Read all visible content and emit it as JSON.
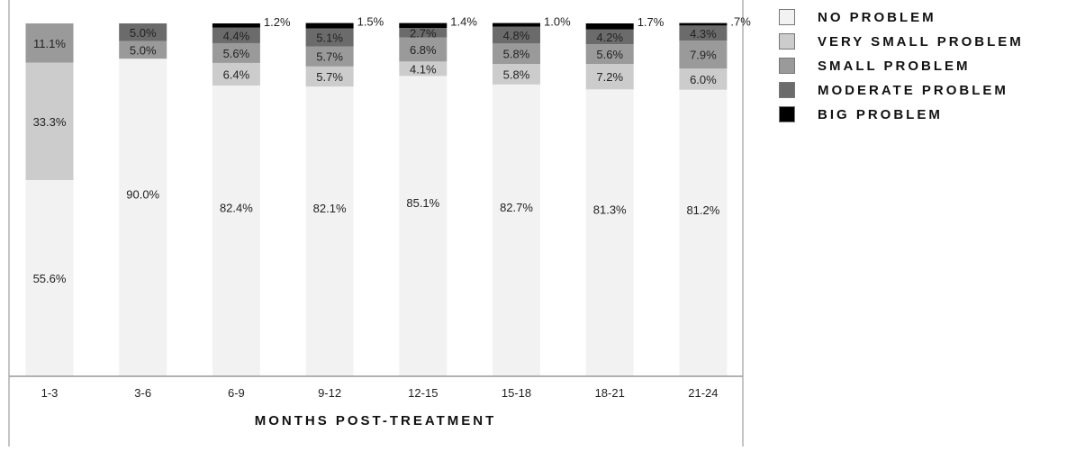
{
  "chart_data": {
    "type": "bar",
    "stacked": true,
    "percent_stacked": true,
    "title": "",
    "xlabel": "MONTHS POST-TREATMENT",
    "ylabel": "",
    "ylim": [
      0,
      100
    ],
    "grid": false,
    "legend_position": "right",
    "categories": [
      "1-3",
      "3-6",
      "6-9",
      "9-12",
      "12-15",
      "15-18",
      "18-21",
      "21-24"
    ],
    "series": [
      {
        "name": "NO PROBLEM",
        "color": "#f2f2f2",
        "values": [
          55.6,
          90.0,
          82.4,
          82.1,
          85.1,
          82.7,
          81.3,
          81.2
        ],
        "labels": [
          "55.6%",
          "90.0%",
          "82.4%",
          "82.1%",
          "85.1%",
          "82.7%",
          "81.3%",
          "81.2%"
        ]
      },
      {
        "name": "VERY SMALL PROBLEM",
        "color": "#cccccc",
        "values": [
          33.3,
          0,
          6.4,
          5.7,
          4.1,
          5.8,
          7.2,
          6.0
        ],
        "labels": [
          "33.3%",
          "",
          "6.4%",
          "5.7%",
          "4.1%",
          "5.8%",
          "7.2%",
          "6.0%"
        ]
      },
      {
        "name": "SMALL PROBLEM",
        "color": "#9a9a9a",
        "values": [
          11.1,
          5.0,
          5.6,
          5.7,
          6.8,
          5.8,
          5.6,
          7.9
        ],
        "labels": [
          "11.1%",
          "5.0%",
          "5.6%",
          "5.7%",
          "6.8%",
          "5.8%",
          "5.6%",
          "7.9%"
        ]
      },
      {
        "name": "MODERATE PROBLEM",
        "color": "#6b6b6b",
        "values": [
          0,
          5.0,
          4.4,
          5.1,
          2.7,
          4.8,
          4.2,
          4.3
        ],
        "labels": [
          "",
          "5.0%",
          "4.4%",
          "5.1%",
          "2.7%",
          "4.8%",
          "4.2%",
          "4.3%"
        ]
      },
      {
        "name": "BIG PROBLEM",
        "color": "#000000",
        "values": [
          0,
          0,
          1.2,
          1.5,
          1.4,
          1.0,
          1.7,
          0.7
        ],
        "labels": [
          "",
          "",
          "1.2%",
          "1.5%",
          "1.4%",
          "1.0%",
          "1.7%",
          ".7%"
        ]
      }
    ]
  }
}
